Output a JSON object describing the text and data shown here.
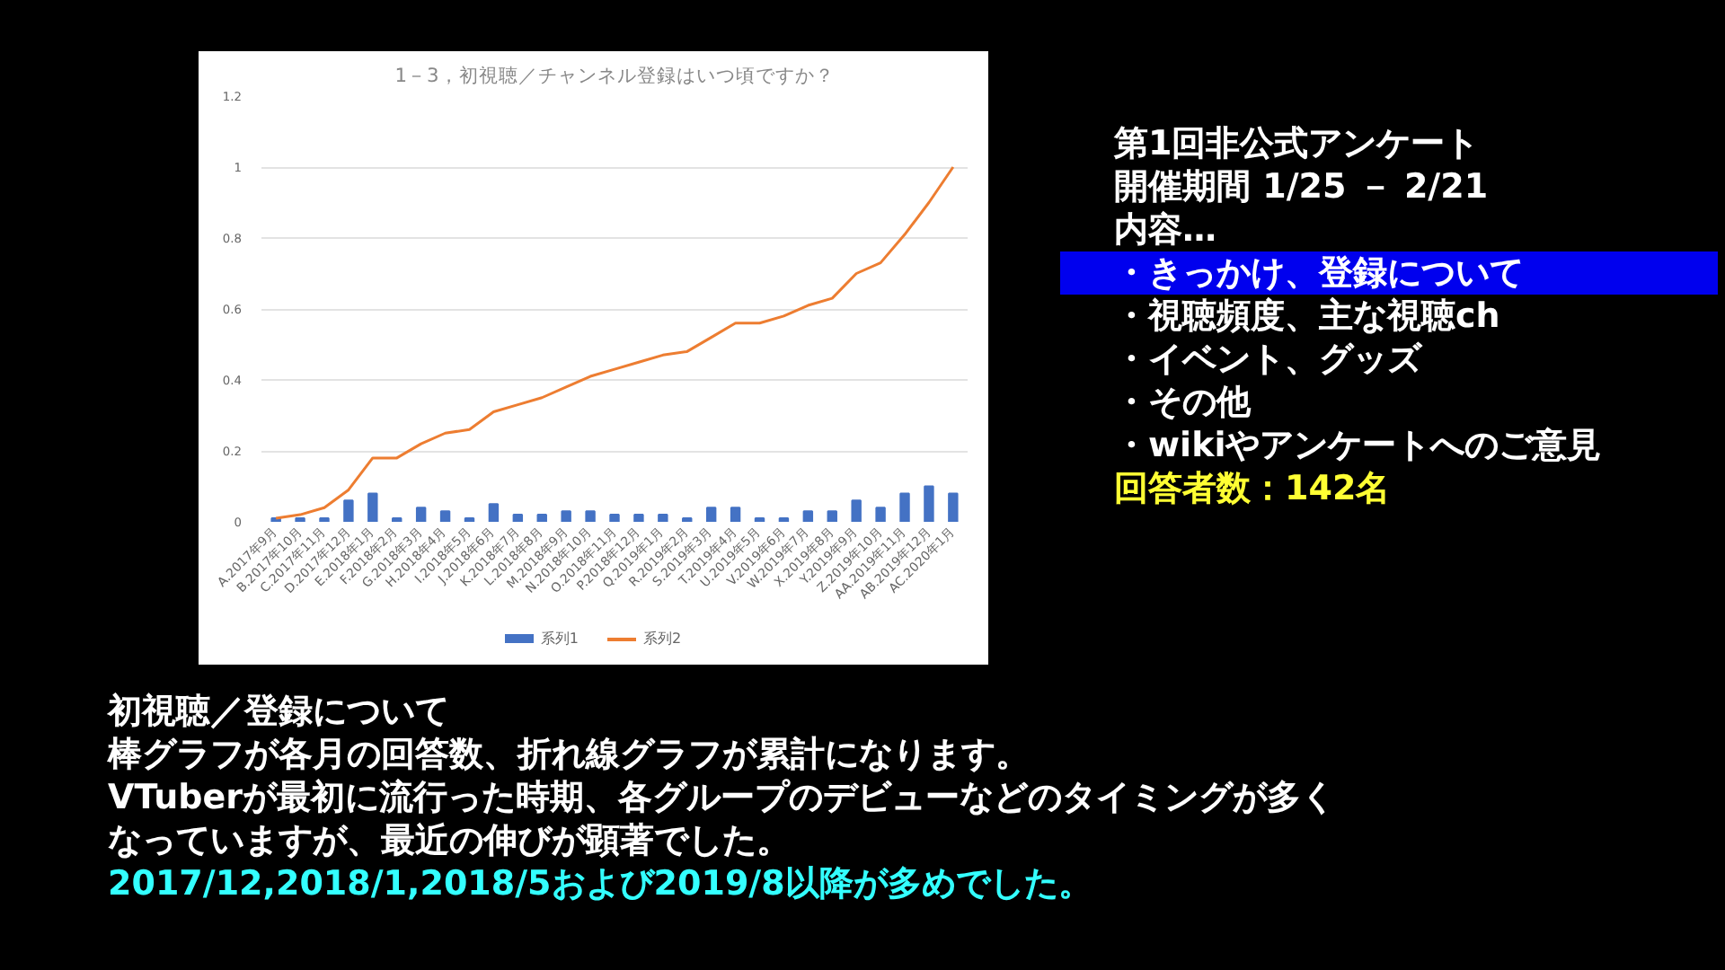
{
  "chart_data": {
    "type": "bar",
    "title": "1－3，初視聴／チャンネル登録はいつ頃ですか？",
    "categories": [
      "A.2017年9月",
      "B.2017年10月",
      "C.2017年11月",
      "D.2017年12月",
      "E.2018年1月",
      "F.2018年2月",
      "G.2018年3月",
      "H.2018年4月",
      "I.2018年5月",
      "J.2018年6月",
      "K.2018年7月",
      "L.2018年8月",
      "M.2018年9月",
      "N.2018年10月",
      "O.2018年11月",
      "P.2018年12月",
      "Q.2019年1月",
      "R.2019年2月",
      "S.2019年3月",
      "T.2019年4月",
      "U.2019年5月",
      "V.2019年6月",
      "W.2019年7月",
      "X.2019年8月",
      "Y.2019年9月",
      "Z.2019年10月",
      "AA.2019年11月",
      "AB.2019年12月",
      "AC.2020年1月"
    ],
    "series": [
      {
        "name": "系列1",
        "color": "#4472c4",
        "values": [
          0.01,
          0.01,
          0.01,
          0.06,
          0.08,
          0.01,
          0.04,
          0.03,
          0.01,
          0.05,
          0.02,
          0.02,
          0.03,
          0.03,
          0.02,
          0.02,
          0.02,
          0.01,
          0.04,
          0.04,
          0.01,
          0.01,
          0.03,
          0.03,
          0.06,
          0.04,
          0.08,
          0.1,
          0.08
        ]
      },
      {
        "name": "系列2",
        "type": "line",
        "color": "#ed7d31",
        "values": [
          0.01,
          0.02,
          0.04,
          0.09,
          0.18,
          0.18,
          0.22,
          0.25,
          0.26,
          0.31,
          0.33,
          0.35,
          0.38,
          0.41,
          0.43,
          0.45,
          0.47,
          0.48,
          0.52,
          0.56,
          0.56,
          0.58,
          0.61,
          0.63,
          0.7,
          0.73,
          0.81,
          0.9,
          1.0
        ]
      }
    ],
    "ylim": [
      0,
      1.2
    ],
    "yticks": [
      0,
      0.2,
      0.4,
      0.6,
      0.8,
      1,
      1.2
    ],
    "grid": "y",
    "legend": "bottom",
    "marker": "none",
    "line_style": "solid",
    "annotations": [
      "第1回非公式アンケート",
      "開催期間 1/25 － 2/21",
      "内容…",
      "・きっかけ、登録について",
      "・視聴頻度、主な視聴ch",
      "・イベント、グッズ",
      "・その他",
      "・wikiやアンケートへのご意見",
      "回答者数：142名",
      "初視聴／登録について",
      "棒グラフが各月の回答数、折れ線グラフが累計になります。",
      "VTuberが最初に流行った時期、各グループのデビューなどのタイミングが多くなっていますが、最近の伸びが顕著でした。",
      "2017/12,2018/1,2018/5および2019/8以降が多めでした。"
    ]
  }
}
